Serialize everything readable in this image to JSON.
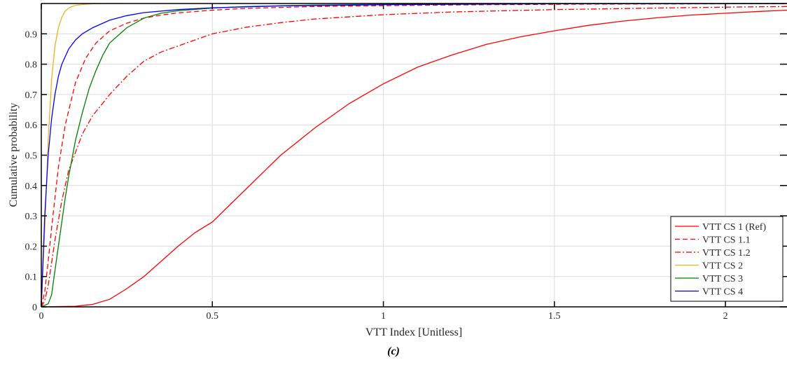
{
  "chart_data": {
    "type": "line",
    "xlabel": "VTT Index [Unitless]",
    "ylabel": "Cumulative probability",
    "xlim": [
      0,
      2.18
    ],
    "ylim": [
      0,
      1
    ],
    "xticks": [
      0,
      0.5,
      1,
      1.5,
      2
    ],
    "xtick_labels": [
      "0",
      "0.5",
      "1",
      "1.5",
      "2"
    ],
    "yticks": [
      0,
      0.1,
      0.2,
      0.3,
      0.4,
      0.5,
      0.6,
      0.7,
      0.8,
      0.9
    ],
    "ytick_labels": [
      "0",
      "0.1",
      "0.2",
      "0.3",
      "0.4",
      "0.5",
      "0.6",
      "0.7",
      "0.8",
      "0.9"
    ],
    "grid": true,
    "legend_position": "bottom-right",
    "series": [
      {
        "name": "VTT CS 1 (Ref)",
        "color": "#ff0000",
        "style": "solid",
        "x": [
          0,
          0.1,
          0.15,
          0.2,
          0.25,
          0.3,
          0.35,
          0.4,
          0.45,
          0.5,
          0.6,
          0.7,
          0.8,
          0.9,
          1.0,
          1.1,
          1.2,
          1.3,
          1.4,
          1.5,
          1.6,
          1.7,
          1.8,
          1.9,
          2.0,
          2.1,
          2.18
        ],
        "y": [
          0,
          0.002,
          0.008,
          0.025,
          0.06,
          0.1,
          0.15,
          0.2,
          0.245,
          0.28,
          0.39,
          0.5,
          0.59,
          0.67,
          0.735,
          0.79,
          0.83,
          0.865,
          0.89,
          0.91,
          0.928,
          0.942,
          0.953,
          0.962,
          0.968,
          0.974,
          0.978
        ]
      },
      {
        "name": "VTT CS 1.1",
        "color": "#ff0000",
        "style": "dashed",
        "x": [
          0,
          0.01,
          0.02,
          0.03,
          0.05,
          0.07,
          0.1,
          0.13,
          0.16,
          0.2,
          0.25,
          0.3,
          0.35,
          0.4,
          0.5,
          0.6,
          0.8,
          1.0,
          1.3,
          1.6,
          2.0,
          2.18
        ],
        "y": [
          0,
          0.05,
          0.15,
          0.26,
          0.46,
          0.6,
          0.74,
          0.82,
          0.87,
          0.91,
          0.935,
          0.952,
          0.962,
          0.969,
          0.978,
          0.984,
          0.99,
          0.993,
          0.996,
          0.998,
          0.999,
          0.999
        ]
      },
      {
        "name": "VTT CS 1.2",
        "color": "#ff0000",
        "style": "dashdot",
        "x": [
          0,
          0.01,
          0.02,
          0.04,
          0.06,
          0.08,
          0.1,
          0.12,
          0.15,
          0.2,
          0.25,
          0.3,
          0.35,
          0.4,
          0.5,
          0.6,
          0.7,
          0.8,
          1.0,
          1.2,
          1.5,
          1.8,
          2.0,
          2.18
        ],
        "y": [
          0,
          0.02,
          0.07,
          0.22,
          0.35,
          0.45,
          0.51,
          0.57,
          0.63,
          0.7,
          0.76,
          0.81,
          0.84,
          0.86,
          0.9,
          0.922,
          0.937,
          0.949,
          0.963,
          0.972,
          0.98,
          0.985,
          0.988,
          0.99
        ]
      },
      {
        "name": "VTT CS 2",
        "color": "#edb120",
        "style": "solid",
        "x": [
          0,
          0.01,
          0.02,
          0.03,
          0.04,
          0.05,
          0.06,
          0.07,
          0.08,
          0.09,
          0.1,
          0.12,
          0.15,
          0.2,
          0.24
        ],
        "y": [
          0,
          0.25,
          0.55,
          0.75,
          0.86,
          0.92,
          0.955,
          0.975,
          0.985,
          0.99,
          0.994,
          0.997,
          0.999,
          1.0,
          1.0
        ]
      },
      {
        "name": "VTT CS 3",
        "color": "#008000",
        "style": "solid",
        "x": [
          0,
          0.02,
          0.03,
          0.04,
          0.05,
          0.06,
          0.07,
          0.08,
          0.09,
          0.1,
          0.12,
          0.14,
          0.16,
          0.18,
          0.2,
          0.25,
          0.3,
          0.35,
          0.4,
          0.5,
          0.6,
          0.8,
          1.0,
          1.3,
          2.18
        ],
        "y": [
          0,
          0.01,
          0.04,
          0.12,
          0.2,
          0.28,
          0.36,
          0.43,
          0.49,
          0.55,
          0.64,
          0.72,
          0.78,
          0.83,
          0.87,
          0.92,
          0.952,
          0.968,
          0.976,
          0.985,
          0.99,
          0.995,
          0.997,
          0.999,
          1.0
        ]
      },
      {
        "name": "VTT CS 4",
        "color": "#0000ff",
        "style": "solid",
        "x": [
          0,
          0.005,
          0.01,
          0.02,
          0.03,
          0.04,
          0.05,
          0.06,
          0.08,
          0.1,
          0.12,
          0.15,
          0.2,
          0.25,
          0.3,
          0.4,
          0.5,
          0.7,
          1.0,
          1.5,
          2.18
        ],
        "y": [
          0,
          0.15,
          0.3,
          0.5,
          0.62,
          0.7,
          0.76,
          0.8,
          0.85,
          0.88,
          0.9,
          0.92,
          0.945,
          0.96,
          0.97,
          0.98,
          0.986,
          0.992,
          0.996,
          0.999,
          1.0
        ]
      }
    ]
  },
  "caption": "(c)"
}
